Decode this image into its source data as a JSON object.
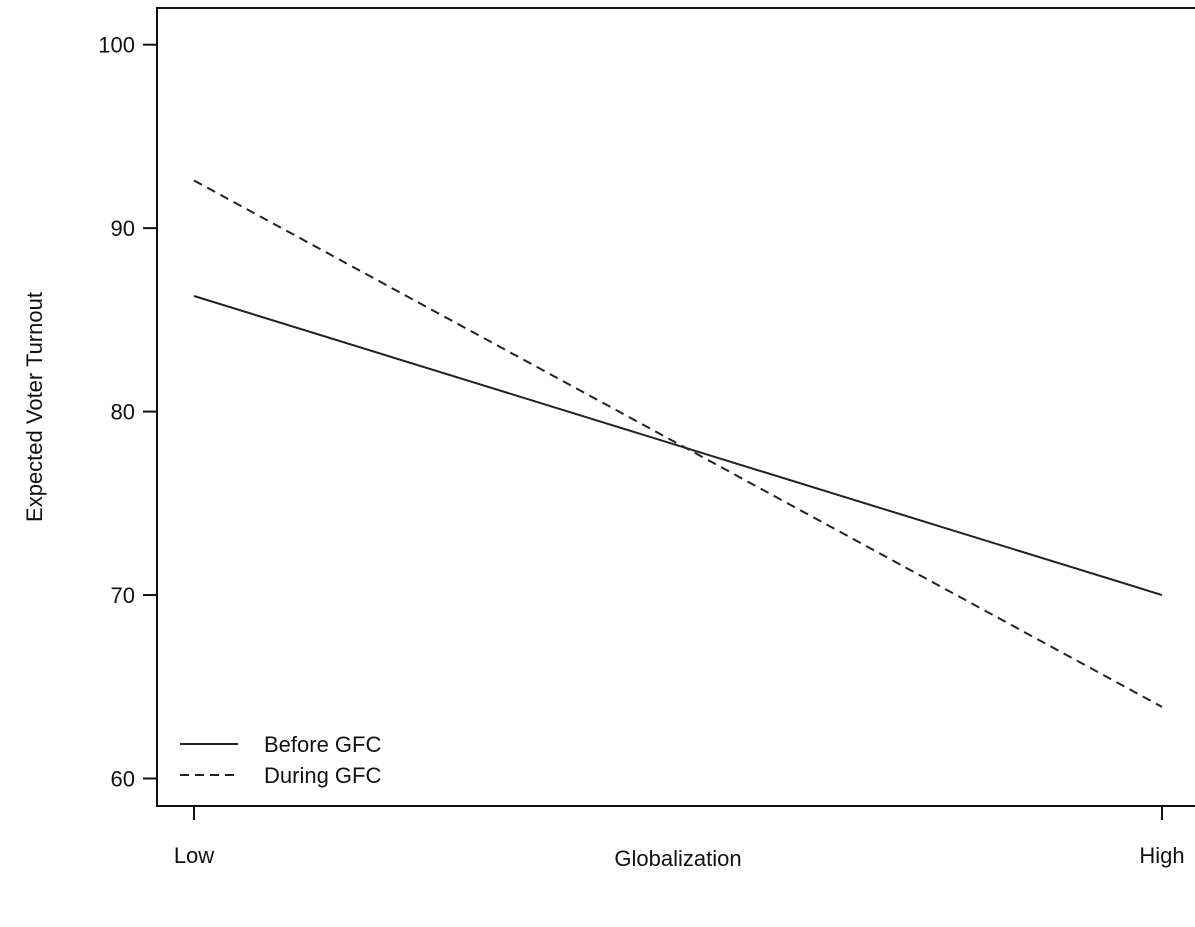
{
  "chart_data": {
    "type": "line",
    "title": "",
    "xlabel": "Globalization",
    "ylabel": "Expected Voter Turnout",
    "x": [
      "Low",
      "High"
    ],
    "xlim": [
      0,
      1
    ],
    "ylim": [
      58.5,
      102
    ],
    "yticks": [
      60,
      70,
      80,
      90,
      100
    ],
    "grid": false,
    "legend_position": "bottom-left",
    "series": [
      {
        "name": "Before GFC",
        "style": "solid",
        "color": "#222222",
        "values": [
          86.3,
          70.0
        ]
      },
      {
        "name": "During GFC",
        "style": "dashed",
        "color": "#222222",
        "values": [
          92.6,
          63.9
        ]
      }
    ]
  }
}
